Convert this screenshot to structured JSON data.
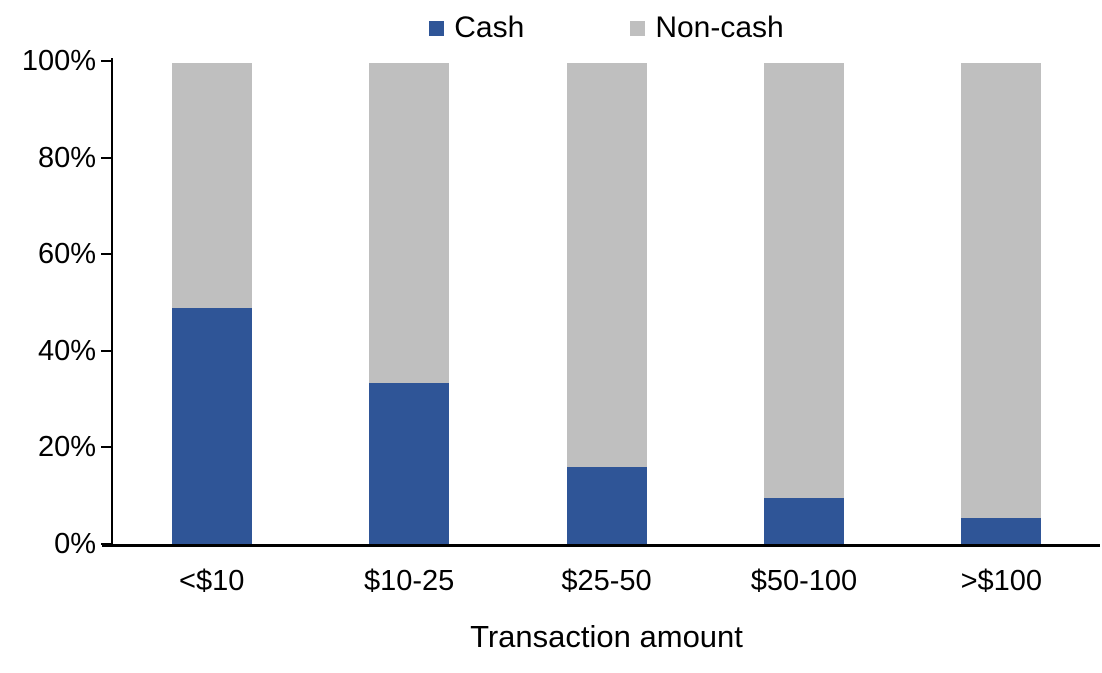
{
  "chart_data": {
    "type": "bar",
    "stacked": true,
    "percent_stacked": true,
    "title": "",
    "xlabel": "Transaction amount",
    "ylabel": "",
    "categories": [
      "<$10",
      "$10-25",
      "$25-50",
      "$50-100",
      ">$100"
    ],
    "series": [
      {
        "name": "Cash",
        "color": "#2F5597",
        "values": [
          49,
          33.5,
          16,
          9.5,
          5.5
        ]
      },
      {
        "name": "Non-cash",
        "color": "#BFBFBF",
        "values": [
          51,
          66.5,
          84,
          90.5,
          94.5
        ]
      }
    ],
    "ylim": [
      0,
      100
    ],
    "yticks": [
      "0%",
      "20%",
      "40%",
      "60%",
      "80%",
      "100%"
    ],
    "grid": false,
    "legend_position": "top-center",
    "axis_color": "#000000",
    "text_color": "#000000",
    "background_color": "#FFFFFF"
  }
}
